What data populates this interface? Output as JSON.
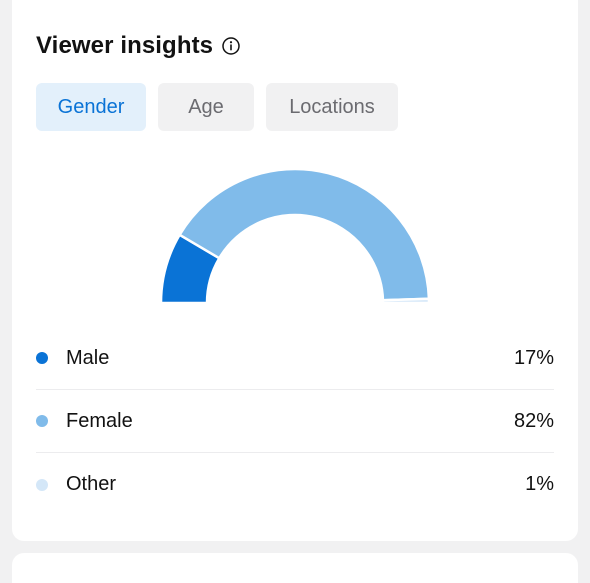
{
  "card": {
    "title": "Viewer insights",
    "info_icon": "info-circle-icon"
  },
  "tabs": [
    {
      "label": "Gender",
      "active": true
    },
    {
      "label": "Age",
      "active": false
    },
    {
      "label": "Locations",
      "active": false
    }
  ],
  "colors": {
    "male": "#0a73d6",
    "female": "#80bbea",
    "other": "#d4e7f8",
    "active_tab_bg": "#e3f0fb",
    "active_tab_text": "#0a73d6"
  },
  "chart_data": {
    "type": "pie",
    "shape": "semi-donut",
    "categories": [
      "Male",
      "Female",
      "Other"
    ],
    "values": [
      17,
      82,
      1
    ],
    "unit": "%"
  },
  "legend": [
    {
      "label": "Male",
      "value": "17%"
    },
    {
      "label": "Female",
      "value": "82%"
    },
    {
      "label": "Other",
      "value": "1%"
    }
  ]
}
